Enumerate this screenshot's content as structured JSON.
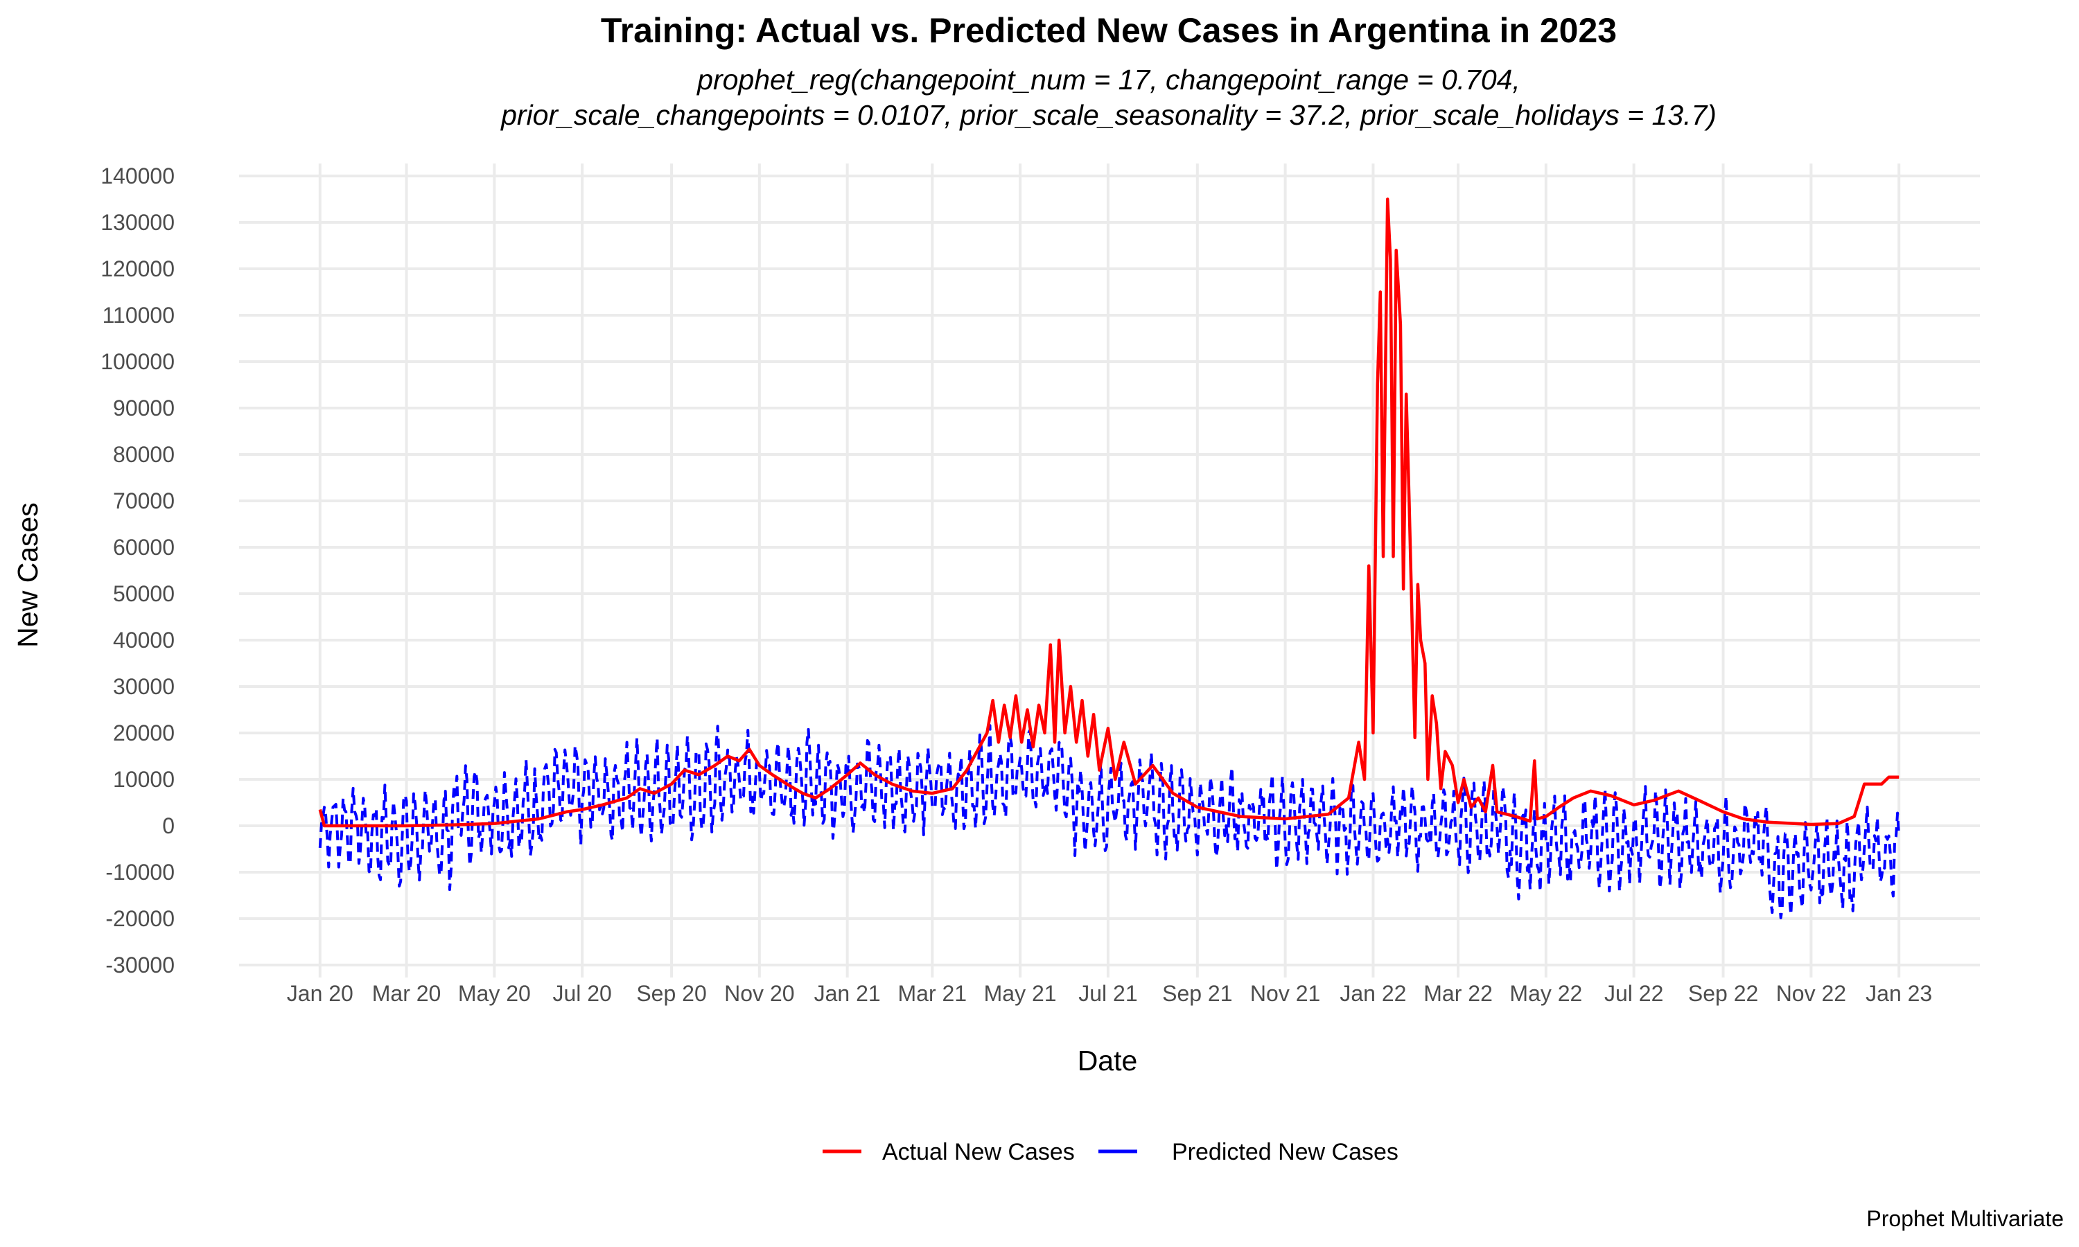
{
  "chart_data": {
    "type": "line",
    "title": "Training: Actual vs. Predicted New Cases in Argentina in 2023",
    "subtitle_lines": [
      "prophet_reg(changepoint_num = 17, changepoint_range = 0.704,",
      "prior_scale_changepoints = 0.0107, prior_scale_seasonality = 37.2, prior_scale_holidays = 13.7)"
    ],
    "xlabel": "Date",
    "ylabel": "New Cases",
    "caption": "Prophet Multivariate",
    "xlim": [
      "2020-01-01",
      "2023-01-01"
    ],
    "ylim": [
      -30000,
      140000
    ],
    "grid": true,
    "legend_position": "bottom",
    "x_ticks": [
      {
        "date": "2020-01-01",
        "label": "Jan 20"
      },
      {
        "date": "2020-03-01",
        "label": "Mar 20"
      },
      {
        "date": "2020-05-01",
        "label": "May 20"
      },
      {
        "date": "2020-07-01",
        "label": "Jul 20"
      },
      {
        "date": "2020-09-01",
        "label": "Sep 20"
      },
      {
        "date": "2020-11-01",
        "label": "Nov 20"
      },
      {
        "date": "2021-01-01",
        "label": "Jan 21"
      },
      {
        "date": "2021-03-01",
        "label": "Mar 21"
      },
      {
        "date": "2021-05-01",
        "label": "May 21"
      },
      {
        "date": "2021-07-01",
        "label": "Jul 21"
      },
      {
        "date": "2021-09-01",
        "label": "Sep 21"
      },
      {
        "date": "2021-11-01",
        "label": "Nov 21"
      },
      {
        "date": "2022-01-01",
        "label": "Jan 22"
      },
      {
        "date": "2022-03-01",
        "label": "Mar 22"
      },
      {
        "date": "2022-05-01",
        "label": "May 22"
      },
      {
        "date": "2022-07-01",
        "label": "Jul 22"
      },
      {
        "date": "2022-09-01",
        "label": "Sep 22"
      },
      {
        "date": "2022-11-01",
        "label": "Nov 22"
      },
      {
        "date": "2023-01-01",
        "label": "Jan 23"
      }
    ],
    "y_ticks": [
      {
        "value": 140000,
        "label": "140000"
      },
      {
        "value": 130000,
        "label": "130000"
      },
      {
        "value": 120000,
        "label": "120000"
      },
      {
        "value": 110000,
        "label": "110000"
      },
      {
        "value": 100000,
        "label": "100000"
      },
      {
        "value": 90000,
        "label": "90000"
      },
      {
        "value": 80000,
        "label": "80000"
      },
      {
        "value": 70000,
        "label": "70000"
      },
      {
        "value": 60000,
        "label": "60000"
      },
      {
        "value": 50000,
        "label": "50000"
      },
      {
        "value": 40000,
        "label": "40000"
      },
      {
        "value": 30000,
        "label": "30000"
      },
      {
        "value": 20000,
        "label": "20000"
      },
      {
        "value": 10000,
        "label": "10000"
      },
      {
        "value": 0,
        "label": "0"
      },
      {
        "value": -10000,
        "label": "-10000"
      },
      {
        "value": -20000,
        "label": "-20000"
      },
      {
        "value": -30000,
        "label": "-30000"
      }
    ],
    "series": [
      {
        "name": "Actual New Cases",
        "color": "#ff0000",
        "style": "solid",
        "points": [
          {
            "x": "2020-01-01",
            "y": 3500
          },
          {
            "x": "2020-01-04",
            "y": 0
          },
          {
            "x": "2020-02-01",
            "y": 0
          },
          {
            "x": "2020-03-01",
            "y": 0
          },
          {
            "x": "2020-04-01",
            "y": 200
          },
          {
            "x": "2020-05-01",
            "y": 500
          },
          {
            "x": "2020-06-01",
            "y": 1500
          },
          {
            "x": "2020-06-20",
            "y": 3000
          },
          {
            "x": "2020-07-01",
            "y": 3500
          },
          {
            "x": "2020-07-15",
            "y": 4500
          },
          {
            "x": "2020-08-01",
            "y": 6000
          },
          {
            "x": "2020-08-10",
            "y": 8000
          },
          {
            "x": "2020-08-20",
            "y": 7000
          },
          {
            "x": "2020-09-01",
            "y": 9000
          },
          {
            "x": "2020-09-10",
            "y": 12000
          },
          {
            "x": "2020-09-20",
            "y": 11000
          },
          {
            "x": "2020-10-01",
            "y": 13000
          },
          {
            "x": "2020-10-10",
            "y": 15000
          },
          {
            "x": "2020-10-18",
            "y": 14000
          },
          {
            "x": "2020-10-25",
            "y": 16500
          },
          {
            "x": "2020-11-01",
            "y": 13000
          },
          {
            "x": "2020-11-10",
            "y": 11000
          },
          {
            "x": "2020-11-20",
            "y": 9000
          },
          {
            "x": "2020-12-01",
            "y": 7000
          },
          {
            "x": "2020-12-10",
            "y": 6000
          },
          {
            "x": "2020-12-20",
            "y": 8000
          },
          {
            "x": "2021-01-01",
            "y": 11000
          },
          {
            "x": "2021-01-10",
            "y": 13500
          },
          {
            "x": "2021-01-20",
            "y": 11000
          },
          {
            "x": "2021-02-01",
            "y": 9000
          },
          {
            "x": "2021-02-15",
            "y": 7500
          },
          {
            "x": "2021-03-01",
            "y": 7000
          },
          {
            "x": "2021-03-15",
            "y": 8000
          },
          {
            "x": "2021-03-25",
            "y": 12000
          },
          {
            "x": "2021-04-01",
            "y": 16000
          },
          {
            "x": "2021-04-08",
            "y": 20000
          },
          {
            "x": "2021-04-12",
            "y": 27000
          },
          {
            "x": "2021-04-16",
            "y": 18000
          },
          {
            "x": "2021-04-20",
            "y": 26000
          },
          {
            "x": "2021-04-24",
            "y": 19000
          },
          {
            "x": "2021-04-28",
            "y": 28000
          },
          {
            "x": "2021-05-02",
            "y": 18000
          },
          {
            "x": "2021-05-06",
            "y": 25000
          },
          {
            "x": "2021-05-10",
            "y": 17000
          },
          {
            "x": "2021-05-14",
            "y": 26000
          },
          {
            "x": "2021-05-18",
            "y": 20000
          },
          {
            "x": "2021-05-22",
            "y": 39000
          },
          {
            "x": "2021-05-25",
            "y": 18000
          },
          {
            "x": "2021-05-28",
            "y": 40000
          },
          {
            "x": "2021-06-01",
            "y": 20000
          },
          {
            "x": "2021-06-05",
            "y": 30000
          },
          {
            "x": "2021-06-09",
            "y": 18000
          },
          {
            "x": "2021-06-13",
            "y": 27000
          },
          {
            "x": "2021-06-17",
            "y": 15000
          },
          {
            "x": "2021-06-21",
            "y": 24000
          },
          {
            "x": "2021-06-25",
            "y": 12000
          },
          {
            "x": "2021-07-01",
            "y": 21000
          },
          {
            "x": "2021-07-06",
            "y": 10000
          },
          {
            "x": "2021-07-12",
            "y": 18000
          },
          {
            "x": "2021-07-20",
            "y": 9000
          },
          {
            "x": "2021-08-01",
            "y": 13000
          },
          {
            "x": "2021-08-15",
            "y": 7000
          },
          {
            "x": "2021-09-01",
            "y": 4000
          },
          {
            "x": "2021-10-01",
            "y": 2000
          },
          {
            "x": "2021-11-01",
            "y": 1500
          },
          {
            "x": "2021-12-01",
            "y": 2500
          },
          {
            "x": "2021-12-15",
            "y": 6000
          },
          {
            "x": "2021-12-22",
            "y": 18000
          },
          {
            "x": "2021-12-26",
            "y": 10000
          },
          {
            "x": "2021-12-29",
            "y": 56000
          },
          {
            "x": "2022-01-01",
            "y": 20000
          },
          {
            "x": "2022-01-04",
            "y": 95000
          },
          {
            "x": "2022-01-06",
            "y": 115000
          },
          {
            "x": "2022-01-08",
            "y": 58000
          },
          {
            "x": "2022-01-11",
            "y": 135000
          },
          {
            "x": "2022-01-13",
            "y": 122000
          },
          {
            "x": "2022-01-15",
            "y": 58000
          },
          {
            "x": "2022-01-17",
            "y": 124000
          },
          {
            "x": "2022-01-20",
            "y": 108000
          },
          {
            "x": "2022-01-22",
            "y": 51000
          },
          {
            "x": "2022-01-24",
            "y": 93000
          },
          {
            "x": "2022-01-26",
            "y": 70000
          },
          {
            "x": "2022-01-30",
            "y": 19000
          },
          {
            "x": "2022-02-01",
            "y": 52000
          },
          {
            "x": "2022-02-03",
            "y": 40000
          },
          {
            "x": "2022-02-06",
            "y": 35000
          },
          {
            "x": "2022-02-08",
            "y": 10000
          },
          {
            "x": "2022-02-11",
            "y": 28000
          },
          {
            "x": "2022-02-14",
            "y": 22000
          },
          {
            "x": "2022-02-17",
            "y": 8000
          },
          {
            "x": "2022-02-20",
            "y": 16000
          },
          {
            "x": "2022-02-25",
            "y": 13000
          },
          {
            "x": "2022-03-01",
            "y": 5000
          },
          {
            "x": "2022-03-05",
            "y": 10000
          },
          {
            "x": "2022-03-10",
            "y": 4000
          },
          {
            "x": "2022-03-15",
            "y": 6000
          },
          {
            "x": "2022-03-20",
            "y": 3000
          },
          {
            "x": "2022-03-25",
            "y": 13000
          },
          {
            "x": "2022-03-28",
            "y": 3000
          },
          {
            "x": "2022-04-10",
            "y": 2000
          },
          {
            "x": "2022-04-20",
            "y": 1000
          },
          {
            "x": "2022-04-23",
            "y": 14000
          },
          {
            "x": "2022-04-25",
            "y": 1500
          },
          {
            "x": "2022-05-01",
            "y": 2000
          },
          {
            "x": "2022-05-10",
            "y": 4000
          },
          {
            "x": "2022-05-20",
            "y": 6000
          },
          {
            "x": "2022-06-01",
            "y": 7500
          },
          {
            "x": "2022-06-15",
            "y": 6500
          },
          {
            "x": "2022-07-01",
            "y": 4500
          },
          {
            "x": "2022-07-15",
            "y": 5500
          },
          {
            "x": "2022-08-01",
            "y": 7500
          },
          {
            "x": "2022-08-15",
            "y": 5500
          },
          {
            "x": "2022-09-01",
            "y": 3000
          },
          {
            "x": "2022-09-15",
            "y": 1500
          },
          {
            "x": "2022-10-01",
            "y": 800
          },
          {
            "x": "2022-11-01",
            "y": 300
          },
          {
            "x": "2022-11-20",
            "y": 500
          },
          {
            "x": "2022-12-01",
            "y": 2000
          },
          {
            "x": "2022-12-08",
            "y": 9000
          },
          {
            "x": "2022-12-20",
            "y": 9000
          },
          {
            "x": "2022-12-25",
            "y": 10500
          },
          {
            "x": "2023-01-01",
            "y": 10500
          }
        ]
      },
      {
        "name": "Predicted New Cases",
        "color": "#0000ff",
        "style": "dashed",
        "segments": [
          {
            "start": "2020-01-01",
            "end": "2020-02-01",
            "center": 0,
            "amplitude": 8000
          },
          {
            "start": "2020-02-01",
            "end": "2020-04-01",
            "center": -2000,
            "amplitude": 10000
          },
          {
            "start": "2020-04-01",
            "end": "2020-06-01",
            "center": 3000,
            "amplitude": 10000
          },
          {
            "start": "2020-06-01",
            "end": "2020-08-01",
            "center": 7000,
            "amplitude": 10000
          },
          {
            "start": "2020-08-01",
            "end": "2020-10-01",
            "center": 8000,
            "amplitude": 10000
          },
          {
            "start": "2020-10-01",
            "end": "2020-12-01",
            "center": 10000,
            "amplitude": 10000
          },
          {
            "start": "2020-12-01",
            "end": "2021-02-01",
            "center": 9000,
            "amplitude": 10000
          },
          {
            "start": "2021-02-01",
            "end": "2021-04-01",
            "center": 8000,
            "amplitude": 9000
          },
          {
            "start": "2021-04-01",
            "end": "2021-06-01",
            "center": 11000,
            "amplitude": 9000
          },
          {
            "start": "2021-06-01",
            "end": "2021-08-01",
            "center": 5000,
            "amplitude": 10000
          },
          {
            "start": "2021-08-01",
            "end": "2021-10-01",
            "center": 3000,
            "amplitude": 9000
          },
          {
            "start": "2021-10-01",
            "end": "2021-12-01",
            "center": 1000,
            "amplitude": 9000
          },
          {
            "start": "2021-12-01",
            "end": "2022-02-01",
            "center": 0,
            "amplitude": 9000
          },
          {
            "start": "2022-02-01",
            "end": "2022-04-01",
            "center": 0,
            "amplitude": 9000
          },
          {
            "start": "2022-04-01",
            "end": "2022-06-01",
            "center": -4000,
            "amplitude": 10000
          },
          {
            "start": "2022-06-01",
            "end": "2022-08-01",
            "center": -3000,
            "amplitude": 10000
          },
          {
            "start": "2022-08-01",
            "end": "2022-10-01",
            "center": -4000,
            "amplitude": 9000
          },
          {
            "start": "2022-10-01",
            "end": "2022-12-01",
            "center": -9000,
            "amplitude": 10000
          },
          {
            "start": "2022-12-01",
            "end": "2023-01-01",
            "center": -6000,
            "amplitude": 9000
          }
        ]
      }
    ]
  }
}
